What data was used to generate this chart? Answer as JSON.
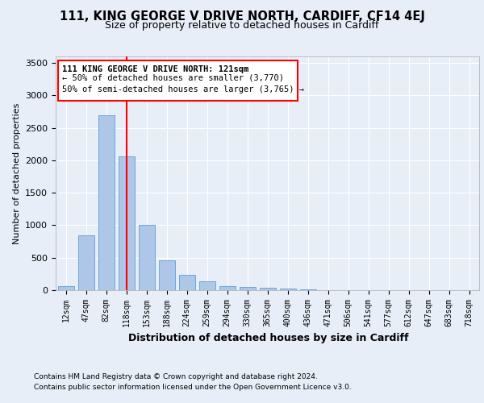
{
  "title1": "111, KING GEORGE V DRIVE NORTH, CARDIFF, CF14 4EJ",
  "title2": "Size of property relative to detached houses in Cardiff",
  "xlabel": "Distribution of detached houses by size in Cardiff",
  "ylabel": "Number of detached properties",
  "categories": [
    "12sqm",
    "47sqm",
    "82sqm",
    "118sqm",
    "153sqm",
    "188sqm",
    "224sqm",
    "259sqm",
    "294sqm",
    "330sqm",
    "365sqm",
    "400sqm",
    "436sqm",
    "471sqm",
    "506sqm",
    "541sqm",
    "577sqm",
    "612sqm",
    "647sqm",
    "683sqm",
    "718sqm"
  ],
  "values": [
    60,
    850,
    2700,
    2060,
    1000,
    460,
    230,
    140,
    60,
    45,
    35,
    25,
    15,
    5,
    0,
    0,
    0,
    0,
    0,
    0,
    0
  ],
  "bar_color": "#aec6e8",
  "bar_edge_color": "#5a9fd4",
  "red_line_x": 3,
  "red_line_label": "111 KING GEORGE V DRIVE NORTH: 121sqm",
  "annotation_line2": "← 50% of detached houses are smaller (3,770)",
  "annotation_line3": "50% of semi-detached houses are larger (3,765) →",
  "ylim": [
    0,
    3600
  ],
  "yticks": [
    0,
    500,
    1000,
    1500,
    2000,
    2500,
    3000,
    3500
  ],
  "footnote1": "Contains HM Land Registry data © Crown copyright and database right 2024.",
  "footnote2": "Contains public sector information licensed under the Open Government Licence v3.0.",
  "bg_color": "#e8eef8",
  "plot_bg_color": "#e8eef8",
  "grid_color": "#ffffff",
  "title1_fontsize": 10.5,
  "title2_fontsize": 9
}
